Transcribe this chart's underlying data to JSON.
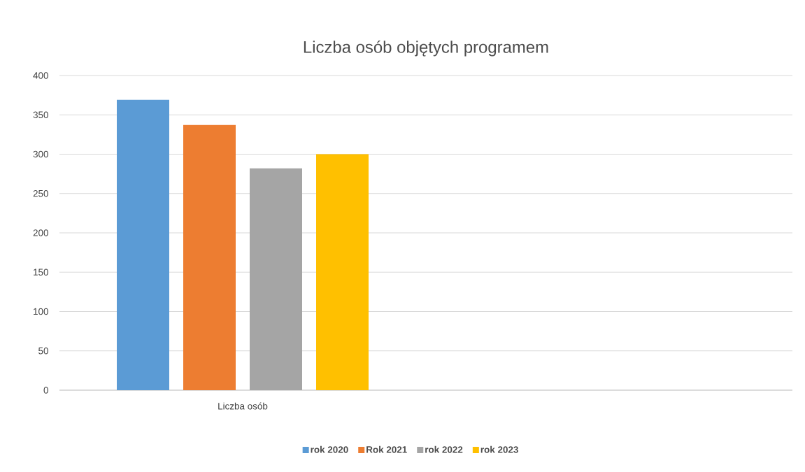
{
  "chart_data": {
    "type": "bar",
    "title": "Liczba osób objętych programem",
    "categories": [
      "Liczba osób",
      null
    ],
    "series": [
      {
        "name": "rok 2020",
        "color": "#5b9bd5",
        "values": [
          369,
          null
        ]
      },
      {
        "name": "Rok 2021",
        "color": "#ed7d31",
        "values": [
          337,
          null
        ]
      },
      {
        "name": "rok 2022",
        "color": "#a5a5a5",
        "values": [
          282,
          null
        ]
      },
      {
        "name": "rok 2023",
        "color": "#ffc000",
        "values": [
          300,
          null
        ]
      }
    ],
    "ylim": [
      0,
      400
    ],
    "yticks": [
      0,
      50,
      100,
      150,
      200,
      250,
      300,
      350,
      400
    ],
    "grid": "y",
    "legend": "bottom"
  }
}
